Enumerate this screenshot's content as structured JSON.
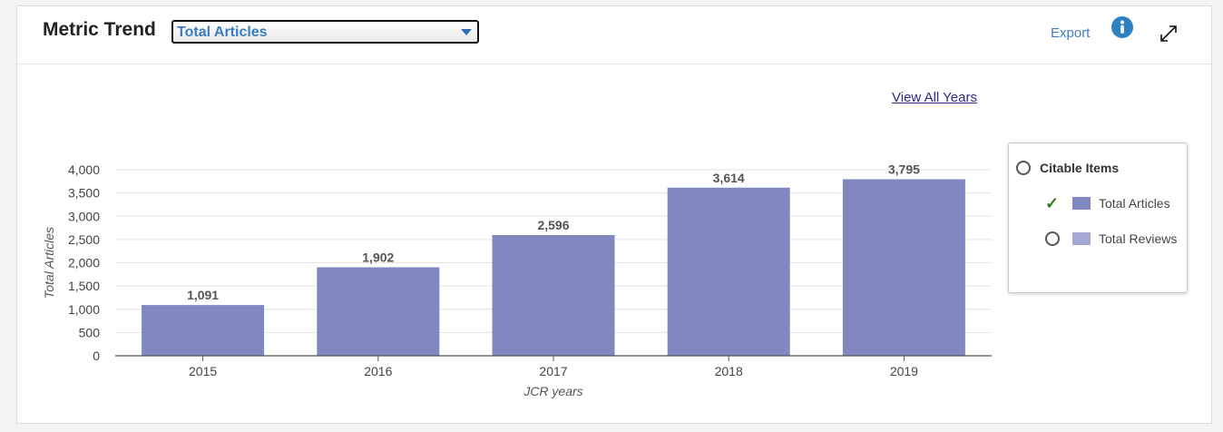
{
  "header": {
    "title": "Metric Trend",
    "selected_metric": "Total Articles",
    "export_label": "Export",
    "info_icon": "info-icon",
    "expand_icon": "expand-icon"
  },
  "view_all_label": "View All Years",
  "legend": {
    "group_label": "Citable Items",
    "items": [
      {
        "label": "Total Articles",
        "checked": true,
        "color": "#8188c0"
      },
      {
        "label": "Total Reviews",
        "checked": false,
        "color": "#a4a9d4"
      }
    ]
  },
  "chart_data": {
    "type": "bar",
    "categories": [
      "2015",
      "2016",
      "2017",
      "2018",
      "2019"
    ],
    "values": [
      1091,
      1902,
      2596,
      3614,
      3795
    ],
    "data_labels": [
      "1,091",
      "1,902",
      "2,596",
      "3,614",
      "3,795"
    ],
    "xlabel": "JCR years",
    "ylabel": "Total Articles",
    "ylim": [
      0,
      4000
    ],
    "yticks": [
      0,
      500,
      1000,
      1500,
      2000,
      2500,
      3000,
      3500,
      4000
    ],
    "ytick_labels": [
      "0",
      "500",
      "1,000",
      "1,500",
      "2,000",
      "2,500",
      "3,000",
      "3,500",
      "4,000"
    ],
    "grid": true,
    "bar_color": "#8188c0"
  }
}
